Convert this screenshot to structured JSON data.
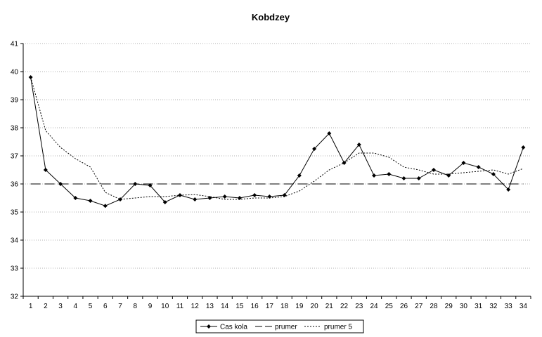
{
  "chart_data": {
    "type": "line",
    "title": "Kobdzey",
    "xlabel": "",
    "ylabel": "",
    "x": [
      1,
      2,
      3,
      4,
      5,
      6,
      7,
      8,
      9,
      10,
      11,
      12,
      13,
      14,
      15,
      16,
      17,
      18,
      19,
      20,
      21,
      22,
      23,
      24,
      25,
      26,
      27,
      28,
      29,
      30,
      31,
      32,
      33,
      34
    ],
    "ylim": [
      32,
      41
    ],
    "yticks": [
      32,
      33,
      34,
      35,
      36,
      37,
      38,
      39,
      40,
      41
    ],
    "grid": "horizontal dotted",
    "legend_position": "bottom",
    "series": [
      {
        "name": "Cas kola",
        "style": "solid-diamond",
        "color": "#000000",
        "values": [
          39.8,
          36.5,
          36.0,
          35.5,
          35.4,
          35.22,
          35.45,
          36.0,
          35.95,
          35.35,
          35.6,
          35.45,
          35.5,
          35.55,
          35.5,
          35.6,
          35.55,
          35.6,
          36.3,
          37.25,
          37.8,
          36.75,
          37.4,
          36.3,
          36.35,
          36.2,
          36.2,
          36.5,
          36.3,
          36.75,
          36.6,
          36.35,
          35.8,
          37.3
        ]
      },
      {
        "name": "prumer",
        "style": "long-dash",
        "color": "#000000",
        "values": [
          36,
          36,
          36,
          36,
          36,
          36,
          36,
          36,
          36,
          36,
          36,
          36,
          36,
          36,
          36,
          36,
          36,
          36,
          36,
          36,
          36,
          36,
          36,
          36,
          36,
          36,
          36,
          36,
          36,
          36,
          36,
          36,
          36,
          36
        ]
      },
      {
        "name": "prumer 5",
        "style": "short-dash",
        "color": "#000000",
        "values": [
          39.8,
          37.9,
          37.3,
          36.9,
          36.6,
          35.7,
          35.45,
          35.5,
          35.55,
          35.55,
          35.6,
          35.62,
          35.55,
          35.45,
          35.45,
          35.5,
          35.5,
          35.55,
          35.75,
          36.1,
          36.5,
          36.75,
          37.1,
          37.1,
          36.95,
          36.6,
          36.5,
          36.35,
          36.35,
          36.4,
          36.45,
          36.5,
          36.35,
          36.55
        ]
      }
    ]
  }
}
